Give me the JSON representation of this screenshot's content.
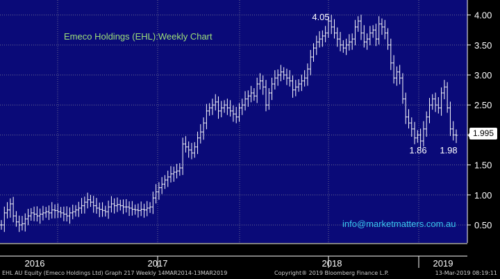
{
  "chart_data": {
    "type": "line",
    "title": "Emeco Holdings (EHL):Weekly Chart",
    "y_ticks": [
      "0.50",
      "1.00",
      "1.50",
      "2.00",
      "2.50",
      "3.00",
      "3.50",
      "4.00"
    ],
    "ylim": [
      0.2,
      4.25
    ],
    "x_labels": [
      "2016",
      "2017",
      "2018",
      "2019"
    ],
    "grid": true,
    "last_price": "1.995",
    "annotations": [
      {
        "text": "4.05"
      },
      {
        "text": "1.86"
      },
      {
        "text": "1.98"
      }
    ],
    "series": [
      {
        "values": [
          0.5,
          0.7,
          0.75,
          0.85,
          0.65,
          0.55,
          0.5,
          0.52,
          0.6,
          0.65,
          0.7,
          0.68,
          0.65,
          0.68,
          0.7,
          0.72,
          0.7,
          0.75,
          0.74,
          0.72,
          0.7,
          0.68,
          0.65,
          0.7,
          0.72,
          0.75,
          0.78,
          0.82,
          0.88,
          0.92,
          0.88,
          0.82,
          0.78,
          0.76,
          0.74,
          0.72,
          0.8,
          0.85,
          0.82,
          0.84,
          0.82,
          0.8,
          0.8,
          0.78,
          0.76,
          0.75,
          0.74,
          0.76,
          0.75,
          0.78,
          0.8,
          0.95,
          1.05,
          1.12,
          1.18,
          1.25,
          1.3,
          1.35,
          1.38,
          1.4,
          1.45,
          1.85,
          1.8,
          1.75,
          1.7,
          1.8,
          1.95,
          2.05,
          2.2,
          2.4,
          2.45,
          2.5,
          2.55,
          2.4,
          2.45,
          2.5,
          2.45,
          2.4,
          2.35,
          2.3,
          2.45,
          2.5,
          2.6,
          2.65,
          2.7,
          2.65,
          2.85,
          2.9,
          2.8,
          2.5,
          2.7,
          2.85,
          2.95,
          3.0,
          3.05,
          3.0,
          2.95,
          2.9,
          2.75,
          2.8,
          2.85,
          2.9,
          2.95,
          3.1,
          3.3,
          3.45,
          3.55,
          3.6,
          3.65,
          3.7,
          3.9,
          3.8,
          3.7,
          3.6,
          3.5,
          3.45,
          3.5,
          3.55,
          3.6,
          3.8,
          3.9,
          3.7,
          3.55,
          3.6,
          3.7,
          3.75,
          3.6,
          3.85,
          3.8,
          3.7,
          3.5,
          3.2,
          2.95,
          3.05,
          2.95,
          2.6,
          2.3,
          2.2,
          2.1,
          1.95,
          2.0,
          1.9,
          2.1,
          2.3,
          2.5,
          2.6,
          2.5,
          2.45,
          2.7,
          2.8,
          2.45,
          2.1,
          2.0,
          1.995
        ]
      }
    ]
  },
  "watermark": "info@marketmatters.com.au",
  "footer": {
    "left": "EHL AU Equity (Emeco Holdings Ltd) Graph 217  Weekly 14MAR2014-13MAR2019",
    "middle": "Copyright® 2019 Bloomberg Finance L.P.",
    "right": "13-Mar-2019 08:19:11"
  },
  "colors": {
    "background": "#000000",
    "plot_background": "#0a0a78",
    "grid": "#6a6a90",
    "price_bars": "#ffffff",
    "title": "#9ee07a",
    "watermark": "#39c8f0"
  }
}
